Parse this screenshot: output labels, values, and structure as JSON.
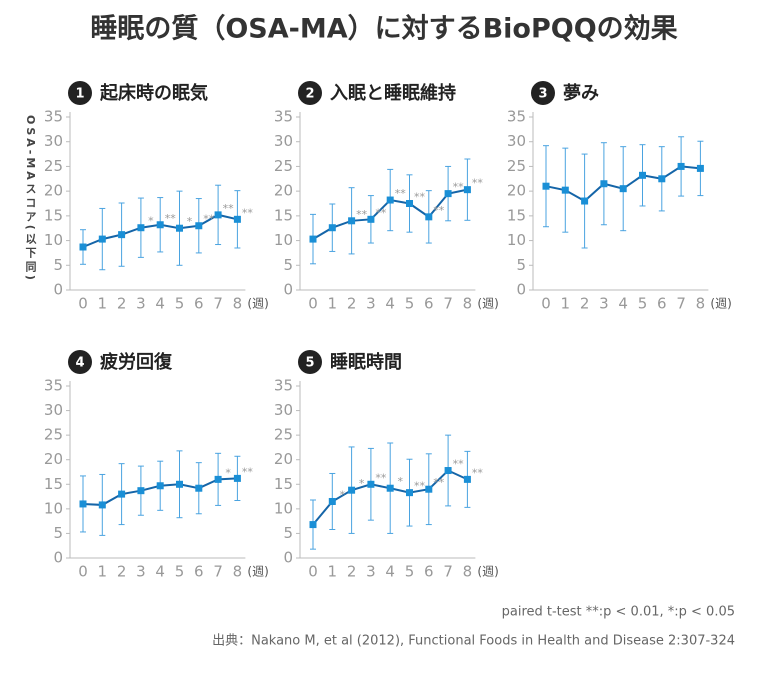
{
  "title": "睡眠の質（OSA-MA）に対するBioPQQの効果",
  "y_label": "OSA-MAスコア(以下同)",
  "x_unit": "(週)",
  "note": "paired t-test **:p < 0.01, *:p < 0.05",
  "source": "出典：Nakano M, et al (2012), Functional Foods in Health and Disease 2:307-324",
  "chart_data": [
    {
      "type": "line",
      "number": "1",
      "title": "起床時の眠気",
      "categories": [
        "0",
        "1",
        "2",
        "3",
        "4",
        "5",
        "6",
        "7",
        "8"
      ],
      "values": [
        8.7,
        10.3,
        11.2,
        12.6,
        13.2,
        12.5,
        13.0,
        15.2,
        14.3
      ],
      "errors": [
        3.5,
        6.2,
        6.4,
        6,
        5.5,
        7.5,
        5.5,
        6,
        5.8
      ],
      "annotations": [
        null,
        null,
        null,
        "*",
        "**",
        "*",
        "**",
        "**",
        "**"
      ],
      "color": "#1a8fd6",
      "ylim": [
        0,
        35
      ],
      "yticks": [
        0,
        5,
        10,
        15,
        20,
        25,
        30,
        35
      ]
    },
    {
      "type": "line",
      "number": "2",
      "title": "入眠と睡眠維持",
      "categories": [
        "0",
        "1",
        "2",
        "3",
        "4",
        "5",
        "6",
        "7",
        "8"
      ],
      "values": [
        10.3,
        12.6,
        14.0,
        14.3,
        18.2,
        17.5,
        14.8,
        19.5,
        20.3
      ],
      "errors": [
        5,
        4.8,
        6.7,
        4.8,
        6.2,
        5.8,
        5.3,
        5.5,
        6.2
      ],
      "annotations": [
        null,
        null,
        "**",
        "**",
        "**",
        "**",
        "**",
        "**",
        "**"
      ],
      "color": "#1a8fd6",
      "ylim": [
        0,
        35
      ],
      "yticks": [
        0,
        5,
        10,
        15,
        20,
        25,
        30,
        35
      ]
    },
    {
      "type": "line",
      "number": "3",
      "title": "夢み",
      "categories": [
        "0",
        "1",
        "2",
        "3",
        "4",
        "5",
        "6",
        "7",
        "8"
      ],
      "values": [
        21,
        20.2,
        18,
        21.5,
        20.5,
        23.2,
        22.5,
        25,
        24.6
      ],
      "errors": [
        8.2,
        8.5,
        9.5,
        8.3,
        8.5,
        6.2,
        6.5,
        6,
        5.5
      ],
      "color": "#1a8fd6",
      "ylim": [
        0,
        35
      ],
      "yticks": [
        0,
        5,
        10,
        15,
        20,
        25,
        30,
        35
      ]
    },
    {
      "type": "line",
      "number": "4",
      "title": "疲労回復",
      "categories": [
        "0",
        "1",
        "2",
        "3",
        "4",
        "5",
        "6",
        "7",
        "8"
      ],
      "values": [
        11,
        10.8,
        13,
        13.7,
        14.7,
        15,
        14.2,
        16,
        16.2
      ],
      "errors": [
        5.7,
        6.2,
        6.2,
        5,
        5,
        6.8,
        5.2,
        5.3,
        4.5
      ],
      "annotations": [
        null,
        null,
        null,
        null,
        null,
        null,
        null,
        "*",
        "**"
      ],
      "color": "#1a8fd6",
      "ylim": [
        0,
        35
      ],
      "yticks": [
        0,
        5,
        10,
        15,
        20,
        25,
        30,
        35
      ]
    },
    {
      "type": "line",
      "number": "5",
      "title": "睡眠時間",
      "categories": [
        "0",
        "1",
        "2",
        "3",
        "4",
        "5",
        "6",
        "7",
        "8"
      ],
      "values": [
        6.8,
        11.5,
        13.8,
        15,
        14.2,
        13.3,
        14,
        17.8,
        16
      ],
      "errors": [
        5,
        5.7,
        8.8,
        7.3,
        9.2,
        6.8,
        7.2,
        7.2,
        5.7
      ],
      "annotations": [
        null,
        "*",
        "*",
        "**",
        "*",
        "**",
        "**",
        "**",
        "**"
      ],
      "color": "#1a8fd6",
      "ylim": [
        0,
        35
      ],
      "yticks": [
        0,
        5,
        10,
        15,
        20,
        25,
        30,
        35
      ]
    }
  ]
}
